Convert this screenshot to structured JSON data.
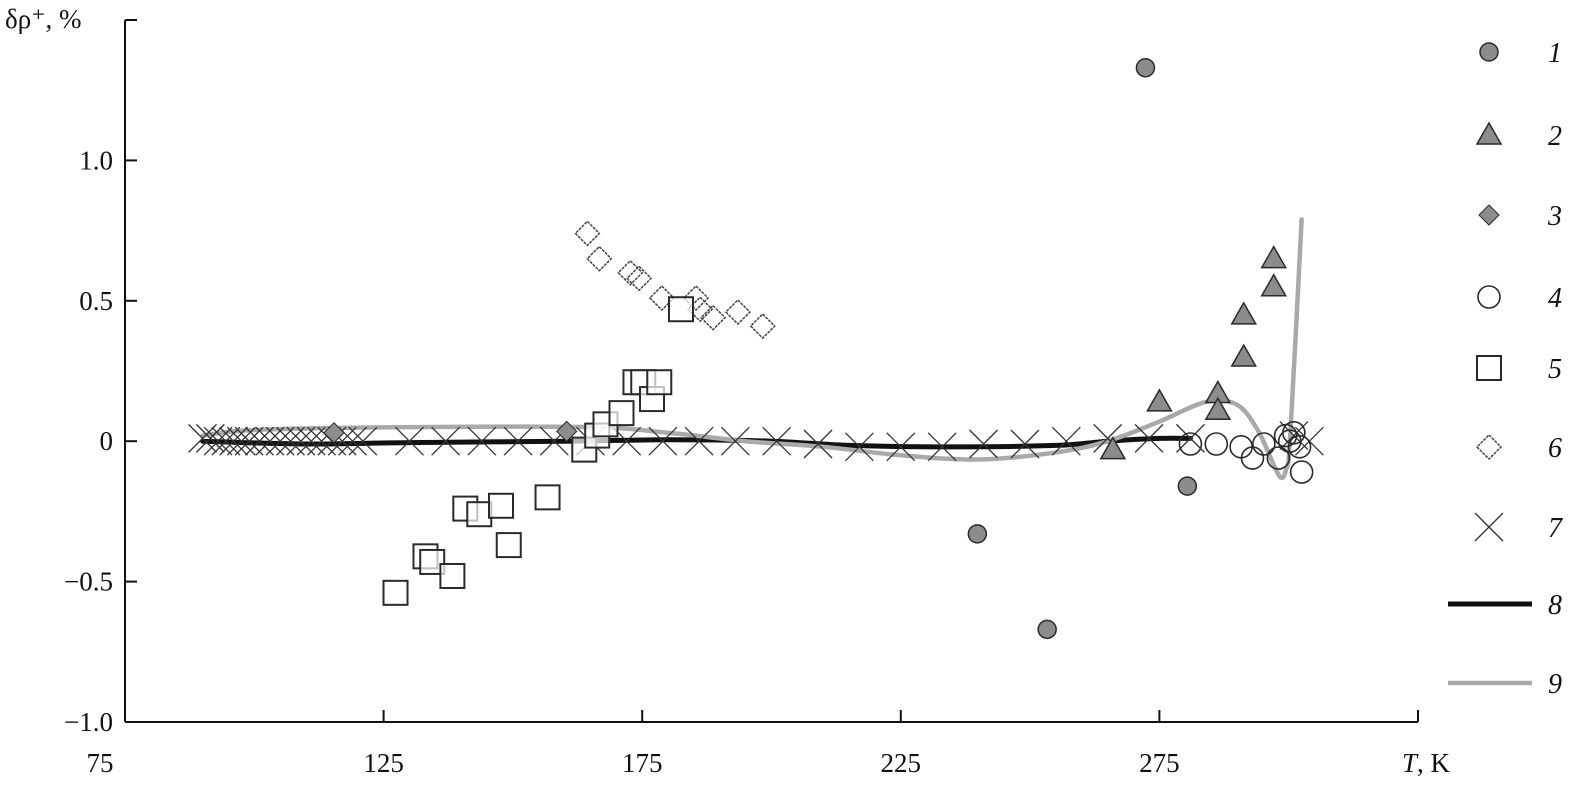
{
  "chart_data": {
    "type": "scatter",
    "title": "",
    "ylabel": "δρ⁺, %",
    "xlabel_italic": "T",
    "xlabel_unit": ", K",
    "xlim": [
      75,
      325
    ],
    "ylim": [
      -1.0,
      1.5
    ],
    "xticks": [
      75,
      125,
      175,
      225,
      275
    ],
    "xtick_labels": [
      "75",
      "125",
      "175",
      "225",
      "275"
    ],
    "yticks": [
      -1.0,
      -0.5,
      0,
      0.5,
      1.0
    ],
    "ytick_labels": [
      "−1.0",
      "−0.5",
      "0",
      "0.5",
      "1.0"
    ],
    "grid": false,
    "legend_placement": "right",
    "colors": {
      "gray_fill": "#8c8c8c",
      "outline": "#2a2a2a",
      "line8": "#111111",
      "line9": "#a9a9a9"
    },
    "series": [
      {
        "name": "1",
        "marker": "filled-circle",
        "points": [
          [
            272.3,
            1.33
          ],
          [
            239.8,
            -0.33
          ],
          [
            253.3,
            -0.67
          ],
          [
            280.4,
            -0.16
          ]
        ]
      },
      {
        "name": "2",
        "marker": "filled-triangle",
        "points": [
          [
            266,
            -0.03
          ],
          [
            275,
            0.14
          ],
          [
            286.3,
            0.17
          ],
          [
            286.3,
            0.11
          ],
          [
            291.3,
            0.45
          ],
          [
            291.3,
            0.3
          ],
          [
            297.1,
            0.65
          ],
          [
            297.1,
            0.55
          ]
        ]
      },
      {
        "name": "3",
        "marker": "filled-diamond",
        "points": [
          [
            115.4,
            0.03
          ],
          [
            160.4,
            0.035
          ]
        ]
      },
      {
        "name": "4",
        "marker": "open-circle",
        "points": [
          [
            281,
            -0.01
          ],
          [
            286,
            -0.01
          ],
          [
            290.8,
            -0.02
          ],
          [
            293,
            -0.06
          ],
          [
            295.2,
            -0.01
          ],
          [
            298,
            -0.06
          ],
          [
            299.4,
            0.02
          ],
          [
            301,
            0.03
          ],
          [
            302.1,
            -0.02
          ],
          [
            302.5,
            -0.11
          ],
          [
            300.2,
            0.0
          ]
        ]
      },
      {
        "name": "5",
        "marker": "open-square",
        "points": [
          [
            127.3,
            -0.54
          ],
          [
            133.1,
            -0.41
          ],
          [
            134.4,
            -0.43
          ],
          [
            138.3,
            -0.48
          ],
          [
            140.8,
            -0.24
          ],
          [
            143.5,
            -0.26
          ],
          [
            147.7,
            -0.23
          ],
          [
            149.2,
            -0.37
          ],
          [
            156.7,
            -0.2
          ],
          [
            163.8,
            -0.03
          ],
          [
            166.3,
            0.02
          ],
          [
            167.9,
            0.06
          ],
          [
            171,
            0.1
          ],
          [
            173.7,
            0.21
          ],
          [
            175.2,
            0.21
          ],
          [
            176.9,
            0.15
          ],
          [
            178.3,
            0.21
          ],
          [
            182.5,
            0.47
          ]
        ]
      },
      {
        "name": "6",
        "marker": "open-diamond",
        "points": [
          [
            164.4,
            0.74
          ],
          [
            166.7,
            0.65
          ],
          [
            172.7,
            0.6
          ],
          [
            174.4,
            0.58
          ],
          [
            178.8,
            0.51
          ],
          [
            185.4,
            0.51
          ],
          [
            186.2,
            0.47
          ],
          [
            188.7,
            0.44
          ],
          [
            193.5,
            0.46
          ],
          [
            198.3,
            0.41
          ]
        ]
      },
      {
        "name": "7",
        "marker": "cross",
        "points": [
          [
            90,
            0.01
          ],
          [
            91.5,
            0.01
          ],
          [
            93,
            0.0
          ],
          [
            94.5,
            0.0
          ],
          [
            96,
            0.0
          ],
          [
            97.5,
            0.0
          ],
          [
            99,
            0.0
          ],
          [
            101,
            0.0
          ],
          [
            103,
            0.0
          ],
          [
            105,
            0.0
          ],
          [
            107,
            0.0
          ],
          [
            109,
            0.0
          ],
          [
            111,
            0.0
          ],
          [
            113,
            0.0
          ],
          [
            115,
            0.0
          ],
          [
            117,
            0.0
          ],
          [
            119,
            0.0
          ],
          [
            121,
            0.0
          ],
          [
            130,
            0.0
          ],
          [
            137,
            0.0
          ],
          [
            144,
            0.0
          ],
          [
            151,
            0.0
          ],
          [
            158,
            0.0
          ],
          [
            165,
            0.0
          ],
          [
            172,
            0.0
          ],
          [
            179,
            0.0
          ],
          [
            186,
            0.0
          ],
          [
            193,
            0.0
          ],
          [
            201,
            0.0
          ],
          [
            209,
            -0.01
          ],
          [
            217,
            -0.02
          ],
          [
            225,
            -0.02
          ],
          [
            233,
            -0.02
          ],
          [
            241,
            -0.01
          ],
          [
            249,
            -0.01
          ],
          [
            257,
            0.0
          ],
          [
            265,
            0.01
          ],
          [
            273,
            0.01
          ],
          [
            281,
            0.01
          ],
          [
            301,
            0.02
          ],
          [
            304,
            0.0
          ]
        ]
      },
      {
        "name": "8",
        "marker": "line",
        "points": [
          [
            90,
            0.0
          ],
          [
            110,
            -0.01
          ],
          [
            130,
            -0.005
          ],
          [
            160,
            0.0
          ],
          [
            180,
            0.005
          ],
          [
            200,
            0.0
          ],
          [
            215,
            -0.015
          ],
          [
            235,
            -0.02
          ],
          [
            255,
            -0.015
          ],
          [
            265,
            0.0
          ],
          [
            275,
            0.01
          ],
          [
            281,
            0.01
          ]
        ]
      },
      {
        "name": "9",
        "marker": "line",
        "points": [
          [
            90,
            0.02
          ],
          [
            100,
            0.04
          ],
          [
            130,
            0.05
          ],
          [
            165,
            0.05
          ],
          [
            180,
            0.03
          ],
          [
            195,
            0.0
          ],
          [
            210,
            -0.02
          ],
          [
            225,
            -0.05
          ],
          [
            240,
            -0.065
          ],
          [
            255,
            -0.04
          ],
          [
            265,
            0.0
          ],
          [
            275,
            0.07
          ],
          [
            284,
            0.14
          ],
          [
            290,
            0.13
          ],
          [
            294,
            0.04
          ],
          [
            297,
            -0.08
          ],
          [
            298.5,
            -0.13
          ],
          [
            299.5,
            -0.1
          ],
          [
            300.3,
            0.02
          ],
          [
            302.5,
            0.79
          ]
        ]
      }
    ]
  }
}
